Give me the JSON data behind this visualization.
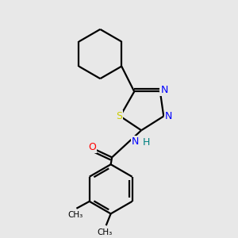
{
  "background_color": "#e8e8e8",
  "bond_color": "#000000",
  "S_color": "#cccc00",
  "N_color": "#0000ff",
  "O_color": "#ff0000",
  "H_color": "#008080",
  "figsize": [
    3.0,
    3.0
  ],
  "dpi": 100,
  "lw": 1.6,
  "xlim": [
    0,
    10
  ],
  "ylim": [
    0,
    10
  ]
}
